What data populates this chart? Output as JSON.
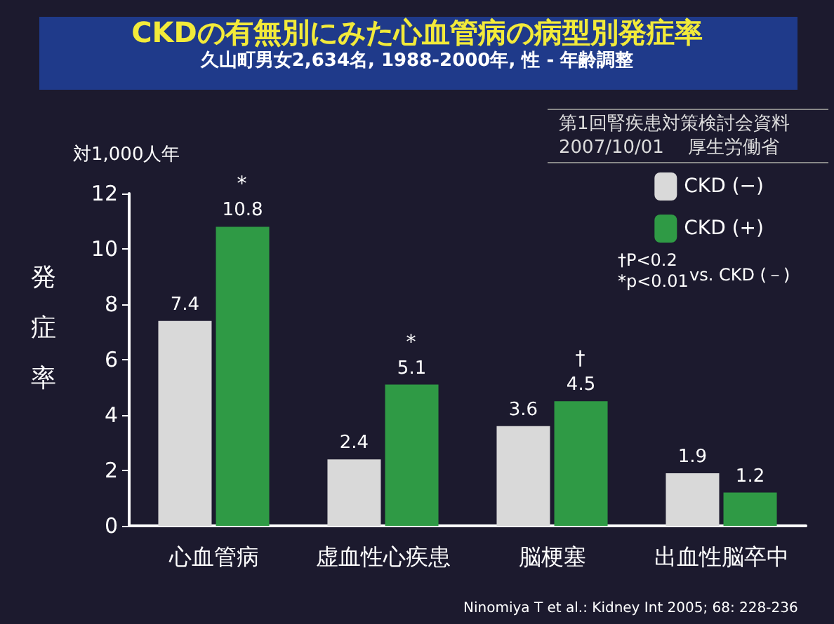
{
  "chart_data": {
    "type": "bar",
    "title": "CKDの有無別にみた心血管病の病型別発症率",
    "subtitle": "久山町男女2,634名, 1988-2000年, 性 - 年齢調整",
    "ylabel": "発症率",
    "categories": [
      "心血管病",
      "虚血性心疾患",
      "脳梗塞",
      "出血性脳卒中"
    ],
    "series": [
      {
        "name": "CKD (−)",
        "color": "#d9d9d9",
        "values": [
          7.4,
          2.4,
          3.6,
          1.9
        ]
      },
      {
        "name": "CKD (+)",
        "color": "#2f9a45",
        "values": [
          10.8,
          5.1,
          4.5,
          1.2
        ]
      }
    ],
    "ylim": [
      0,
      12
    ],
    "yticks": [
      0,
      2,
      4,
      6,
      8,
      10,
      12
    ],
    "grid": false,
    "legend": "top right",
    "data_labels": true,
    "annotations": [
      {
        "text": "*",
        "x": "心血管病",
        "y": 10.8
      },
      {
        "text": "*",
        "x": "虚血性心疾患",
        "y": 5.1
      },
      {
        "text": "†",
        "x": "脳梗塞",
        "y": 4.5
      },
      "対1,000人年",
      "第1回腎疾患対策検討会資料",
      "2007/10/01　 厚生労働省",
      "†P<0.2\n*p<0.01",
      "vs. CKD (－)",
      "Ninomiya T et al.: Kidney Int 2005; 68: 228-236"
    ]
  }
}
